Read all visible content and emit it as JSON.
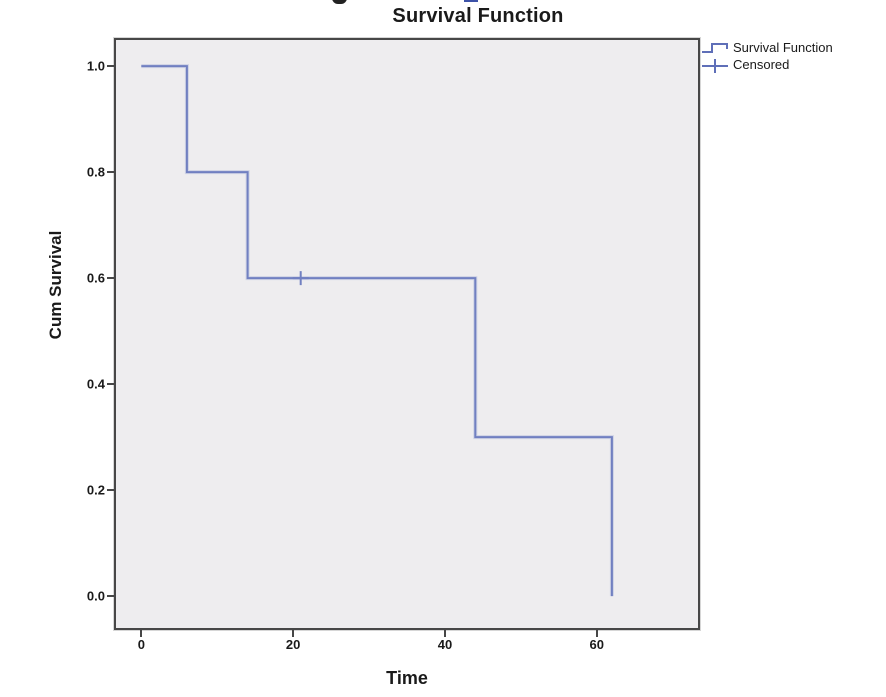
{
  "title": "Survival Function",
  "axis": {
    "x_title": "Time",
    "y_title": "Cum Survival",
    "x_tick_labels": [
      "0",
      "20",
      "40",
      "60"
    ],
    "y_tick_labels": [
      "0.0",
      "0.2",
      "0.4",
      "0.6",
      "0.8",
      "1.0"
    ]
  },
  "legend": {
    "items": [
      {
        "label": "Survival Function",
        "symbol": "step-line-icon"
      },
      {
        "label": "Censored",
        "symbol": "plus-icon"
      }
    ]
  },
  "chart_data": {
    "type": "line",
    "subtype": "kaplan-meier-step",
    "title": "Survival Function",
    "xlabel": "Time",
    "ylabel": "Cum Survival",
    "x_ticks": [
      0,
      20,
      40,
      60
    ],
    "y_ticks": [
      0.0,
      0.2,
      0.4,
      0.6,
      0.8,
      1.0
    ],
    "xlim": [
      -3.6,
      73.6
    ],
    "ylim": [
      -0.064,
      1.053
    ],
    "grid": false,
    "legend_position": "top-right-outside",
    "series": [
      {
        "name": "Survival Function",
        "type": "step",
        "points": [
          [
            0,
            1.0
          ],
          [
            6,
            1.0
          ],
          [
            6,
            0.8
          ],
          [
            14,
            0.8
          ],
          [
            14,
            0.6
          ],
          [
            44,
            0.6
          ],
          [
            44,
            0.3
          ],
          [
            62,
            0.3
          ],
          [
            62,
            0.0
          ]
        ]
      },
      {
        "name": "Censored",
        "type": "marker-plus",
        "points": [
          [
            21,
            0.6
          ]
        ]
      }
    ],
    "event_times": [
      6,
      14,
      44,
      62
    ],
    "censored_times": [
      21
    ],
    "colors": {
      "line": "#7180c1",
      "line_halo": "#b6bedd",
      "legend_symbol": "#5f6fb8",
      "plot_bg": "#eeedef",
      "plot_border": "#474747",
      "text": "#1a1a1a"
    }
  }
}
